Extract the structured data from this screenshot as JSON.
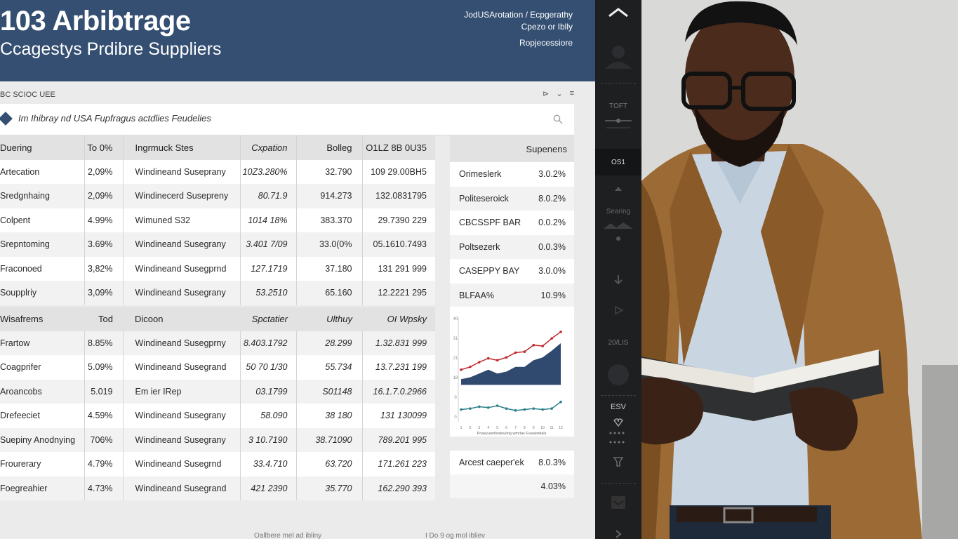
{
  "header": {
    "title": "103 Arbibtrage",
    "subtitle": "Ccagestys Prdibre Suppliers",
    "right_line1": "JodUSArotation  /  Ecpgerathy",
    "right_line2": "Cpezo or Iblly",
    "right_line3": "Ropjecessiore"
  },
  "section": {
    "label": "BC SCIOC UEE",
    "controls": [
      "⊳",
      "⌄",
      "≡"
    ]
  },
  "search": {
    "value": "Im Ihibray nd USA Fupfragus actdlies Feudelies"
  },
  "table1": {
    "headers": [
      "Duering",
      "To 0%",
      "Ingrmuck Stes",
      "Cxpation",
      "Bolleg",
      "O1LZ 8B 0U35"
    ],
    "rows": [
      [
        "Artecation",
        "2,09%",
        "Windineand Suseprany",
        "10Z3.280%",
        "32.790",
        "109 29.00BH5"
      ],
      [
        "Sredgnhaing",
        "2,09%",
        "Windinecerd Susepreny",
        "80.71.9",
        "914.273",
        "132.0831795"
      ],
      [
        "Colpent",
        "4.99%",
        "Wimuned S32",
        "1014 18%",
        "383.370",
        "29.7390 229"
      ],
      [
        "Srepntoming",
        "3.69%",
        "Windineand Susegrany",
        "3.401 7/09",
        "33.0(0%",
        "05.1610.7493"
      ],
      [
        "Fraconoed",
        "3,82%",
        "Windineand Susegprnd",
        "127.1719",
        "37.180",
        "131 291 999"
      ],
      [
        "Soupplriy",
        "3,09%",
        "Windineand Susegrany",
        "53.2510",
        "65.160",
        "12.2221 295"
      ]
    ]
  },
  "side_table": {
    "header": "Supenens",
    "rows": [
      [
        "Orimeslerk",
        "3.0.2%"
      ],
      [
        "Politeseroick",
        "8.0.2%"
      ],
      [
        "CBCSSPF BAR",
        "0.0.2%"
      ],
      [
        "Poltsezerk",
        "0.0.3%"
      ],
      [
        "CASEPPY BAY",
        "3.0.0%"
      ],
      [
        "BLFAA%",
        "10.9%"
      ]
    ]
  },
  "table2": {
    "headers": [
      "Wisafrems",
      "Tod",
      "Dicoon",
      "Spctatier",
      "Ulthuy",
      "OI Wpsky"
    ],
    "rows": [
      [
        "Frartow",
        "8.85%",
        "Windineand Susegprny",
        "8.403.1792",
        "28.299",
        "1.32.831 999"
      ],
      [
        "Coagprifer",
        "5.09%",
        "Windineand Susegrand",
        "50 70 1/30",
        "55.734",
        "13.7.231 199"
      ],
      [
        "Aroancobs",
        "5.019",
        "Em ier IRep",
        "03.1799",
        "S01148",
        "16.1.7.0.2966"
      ],
      [
        "Drefeeciet",
        "4.59%",
        "Windineand Susegrany",
        "58.090",
        "38 180",
        "131 130099"
      ],
      [
        "Suepiny Anodnying",
        "706%",
        "Windineand Susegrany",
        "3 10.7190",
        "38.71090",
        "789.201 995"
      ],
      [
        "Frourerary",
        "4.79%",
        "Windineand Susegrnd",
        "33.4.710",
        "63.720",
        "171.261 223"
      ],
      [
        "Foegreahier",
        "4.73%",
        "Windineand Susegrand",
        "421 2390",
        "35.770",
        "162.290 393"
      ]
    ]
  },
  "chart_data": {
    "type": "line",
    "title": "",
    "xlabel": "",
    "ylabel": "",
    "footer": "Poseyuentlosteuiing wmrlas Fueperetals",
    "x": [
      1,
      2,
      3,
      4,
      5,
      6,
      7,
      8,
      9,
      10,
      11,
      12
    ],
    "series": [
      {
        "color": "#c0282d",
        "values": [
          52,
          55,
          60,
          64,
          62,
          65,
          70,
          71,
          78,
          77,
          85,
          92
        ]
      },
      {
        "color": "#2f4a6e",
        "fill": true,
        "values": [
          42,
          44,
          48,
          52,
          48,
          50,
          55,
          55,
          62,
          65,
          72,
          80
        ]
      },
      {
        "color": "#2a7f8c",
        "values": [
          10,
          11,
          13,
          12,
          14,
          11,
          9,
          10,
          11,
          10,
          11,
          18
        ]
      }
    ],
    "ylim": [
      0,
      100
    ],
    "tick_labels": [
      "40",
      "31",
      "21",
      "18",
      "0",
      "0"
    ]
  },
  "bottom_box": {
    "rows": [
      [
        "Arcest caeper'ek",
        "8.0.3%"
      ],
      [
        "",
        "4.03%"
      ]
    ]
  },
  "footer": {
    "left": "Oallbere mel ad ibliny",
    "right": "I Do 9 og mol ibliev"
  },
  "toolbar": {
    "item1": "TOFT",
    "item2": "OS1",
    "item3": "Searing",
    "item4": "20/LIS",
    "item5": "ESV"
  }
}
